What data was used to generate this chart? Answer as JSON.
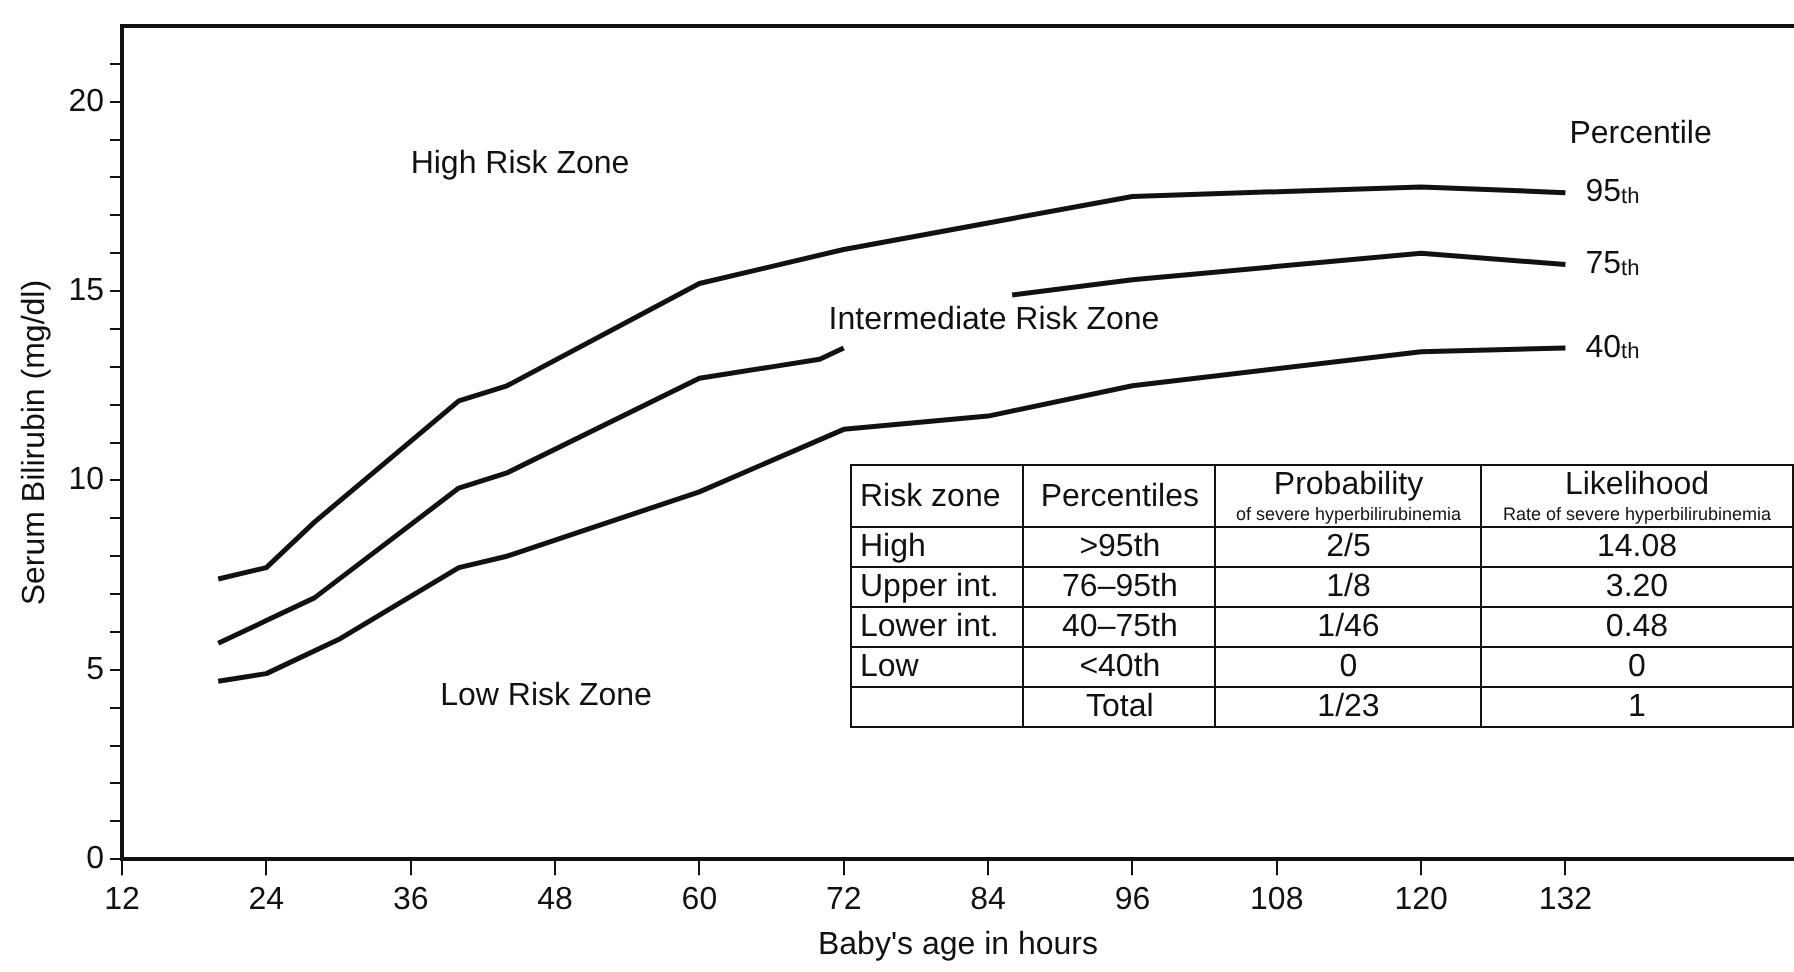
{
  "chart_data": {
    "type": "line",
    "xlabel": "Baby's age in hours",
    "ylabel": "Serum Bilirubin (mg/dl)",
    "legend_title": "Percentile",
    "xlim": [
      12,
      151
    ],
    "xticks": [
      12,
      24,
      36,
      48,
      60,
      72,
      84,
      96,
      108,
      120,
      132
    ],
    "ylim": [
      0,
      22
    ],
    "yticks": [
      0,
      {
        "value": 1,
        "label": null
      },
      {
        "value": 2,
        "label": null
      },
      {
        "value": 3,
        "label": null
      },
      {
        "value": 4,
        "label": null
      },
      5,
      {
        "value": 6,
        "label": null
      },
      {
        "value": 7,
        "label": null
      },
      {
        "value": 8,
        "label": null
      },
      {
        "value": 9,
        "label": null
      },
      10,
      {
        "value": 11,
        "label": null
      },
      {
        "value": 12,
        "label": null
      },
      {
        "value": 13,
        "label": null
      },
      {
        "value": 14,
        "label": null
      },
      15,
      {
        "value": 16,
        "label": null
      },
      {
        "value": 17,
        "label": null
      },
      {
        "value": 18,
        "label": null
      },
      {
        "value": 19,
        "label": null
      },
      20,
      {
        "value": 21,
        "label": null
      }
    ],
    "grid": false,
    "legend": false,
    "marker": "none",
    "line_style": "solid",
    "series": [
      {
        "name": "95th",
        "color": "#111111",
        "x": [
          20,
          24,
          28,
          40,
          44,
          60,
          72,
          84,
          96,
          120,
          132
        ],
        "values": [
          7.4,
          7.7,
          8.9,
          12.1,
          12.5,
          15.2,
          16.1,
          16.8,
          17.5,
          17.75,
          17.6
        ]
      },
      {
        "name": "75th",
        "color": "#111111",
        "x": [
          20,
          24,
          28,
          40,
          44,
          60,
          66,
          70,
          72,
          78,
          86,
          96,
          120,
          132
        ],
        "values": [
          5.7,
          6.3,
          6.9,
          9.8,
          10.2,
          12.7,
          13.0,
          13.2,
          13.5,
          null,
          14.9,
          15.3,
          16.0,
          15.7
        ]
      },
      {
        "name": "40th",
        "color": "#111111",
        "x": [
          20,
          24,
          30,
          40,
          44,
          60,
          72,
          84,
          96,
          120,
          132
        ],
        "values": [
          4.7,
          4.9,
          5.8,
          7.7,
          8.0,
          9.7,
          11.35,
          11.7,
          12.5,
          13.4,
          13.5
        ]
      }
    ],
    "annotations": [
      "High Risk Zone",
      "Intermediate Risk Zone",
      "Low Risk Zone",
      "Risk zone",
      "Percentiles",
      "Probability\nof severe hyperbilirubinemia",
      "Likelihood\nRate of severe hyperbilirubinemia",
      "High",
      ">95th",
      "2/5",
      "14.08",
      "Upper int.",
      "76–95th",
      "1/8",
      "3.20",
      "Lower int.",
      "40–75th",
      "1/46",
      "0.48",
      "Low",
      "<40th",
      "0",
      "0",
      "Total",
      "1/23",
      "1"
    ]
  }
}
